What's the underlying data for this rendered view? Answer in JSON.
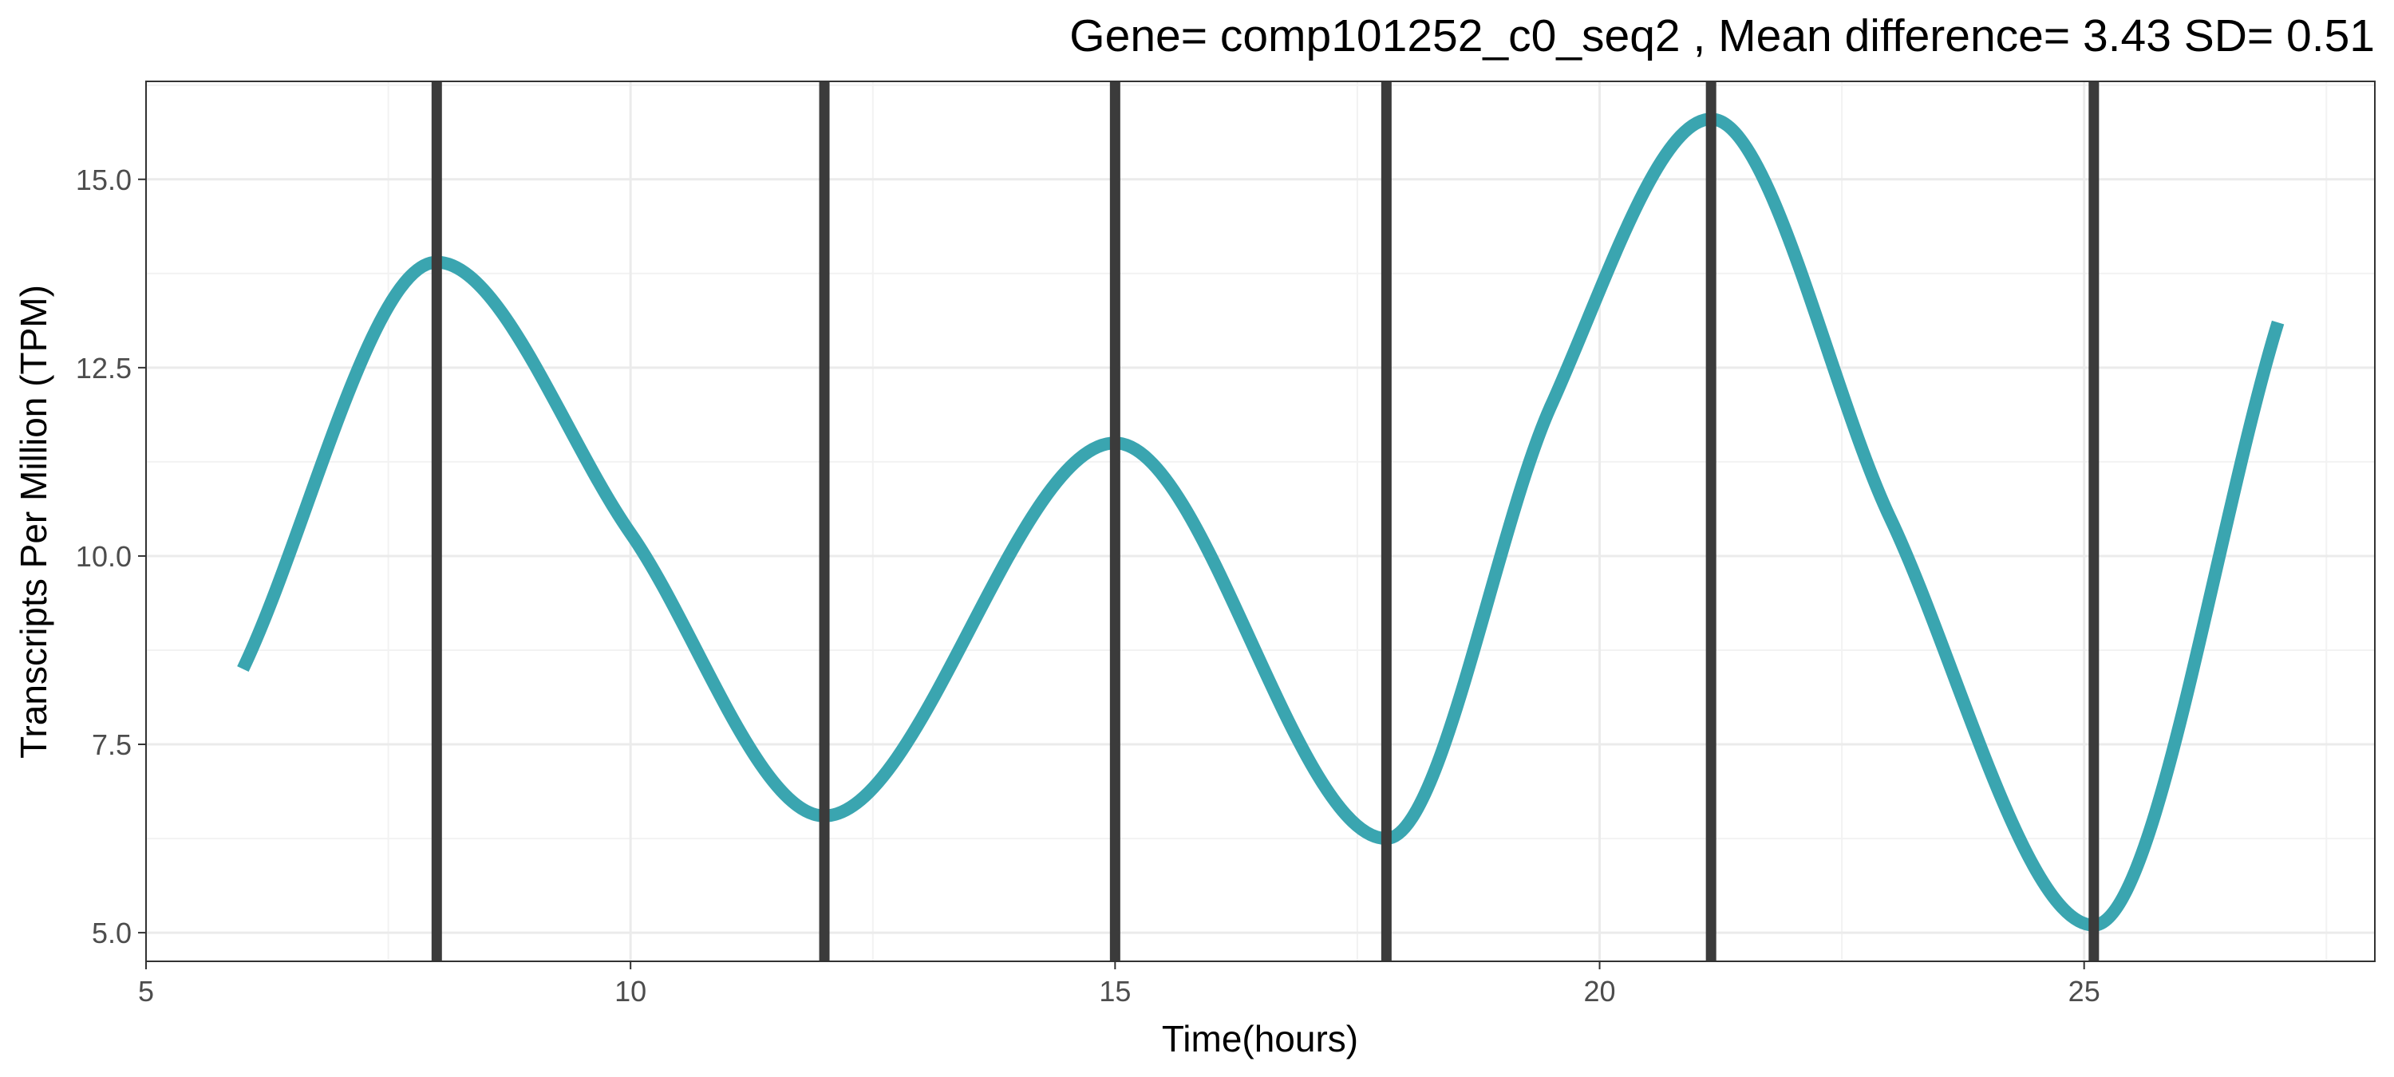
{
  "chart_data": {
    "type": "line",
    "title": "Gene= comp101252_c0_seq2 , Mean difference= 3.43  SD= 0.51",
    "xlabel": "Time(hours)",
    "ylabel": "Transcripts Per Million (TPM)",
    "xlim": [
      5,
      28
    ],
    "ylim": [
      4.62,
      16.3
    ],
    "xticks": [
      5,
      10,
      15,
      20,
      25
    ],
    "xtick_labels": [
      "5",
      "10",
      "15",
      "20",
      "25"
    ],
    "yticks": [
      5.0,
      7.5,
      10.0,
      12.5,
      15.0
    ],
    "ytick_labels": [
      "5.0",
      "7.5",
      "10.0",
      "12.5",
      "15.0"
    ],
    "grid": true,
    "series": [
      {
        "color": "#3aa5b0",
        "x": [
          6.0,
          8.0,
          10.0,
          12.0,
          15.0,
          17.8,
          19.5,
          21.15,
          23.0,
          25.1,
          27.0
        ],
        "y": [
          8.5,
          13.9,
          10.3,
          6.55,
          11.5,
          6.25,
          12.0,
          15.8,
          10.5,
          5.1,
          13.1
        ]
      }
    ],
    "vlines": {
      "color": "#3b3b3b",
      "x": [
        8.0,
        12.0,
        15.0,
        17.8,
        21.15,
        25.1
      ]
    }
  }
}
